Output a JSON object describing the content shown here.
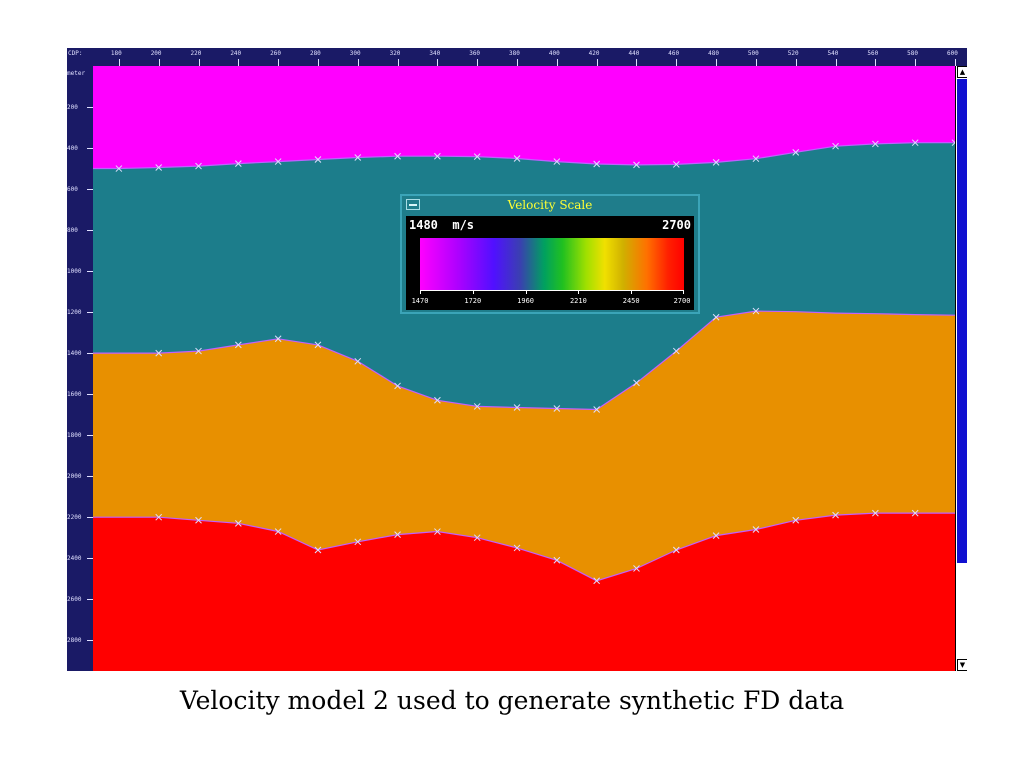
{
  "viewer": {
    "cdp_axis_label": "CDP:",
    "depth_axis_label": "meter",
    "cdp_ticks": [
      "180",
      "200",
      "220",
      "240",
      "260",
      "280",
      "300",
      "320",
      "340",
      "360",
      "380",
      "400",
      "420",
      "440",
      "460",
      "480",
      "500",
      "520",
      "540",
      "560",
      "580",
      "600"
    ],
    "depth_ticks": [
      "200",
      "400",
      "600",
      "800",
      "1000",
      "1200",
      "1400",
      "1600",
      "1800",
      "2000",
      "2200",
      "2400",
      "2600",
      "2800"
    ],
    "cdp_range": [
      167,
      600
    ],
    "depth_range": [
      0,
      2950
    ],
    "scrollbar": {
      "up_icon": "▲",
      "down_icon": "▼"
    }
  },
  "model": {
    "layer_colors": [
      "#ff00ff",
      "#1c7d8b",
      "#e89000",
      "#ff0000"
    ],
    "interfaces": [
      {
        "cdp": [
          167,
          180,
          200,
          220,
          240,
          260,
          280,
          300,
          320,
          340,
          360,
          380,
          400,
          420,
          440,
          460,
          480,
          500,
          520,
          540,
          560,
          580,
          600
        ],
        "depth": [
          500,
          500,
          495,
          488,
          476,
          466,
          456,
          446,
          440,
          440,
          442,
          451,
          466,
          478,
          482,
          480,
          470,
          452,
          421,
          391,
          380,
          374,
          374
        ],
        "markers_cdp": [
          180,
          200,
          220,
          240,
          260,
          280,
          300,
          320,
          340,
          360,
          380,
          400,
          420,
          440,
          460,
          480,
          500,
          520,
          540,
          560,
          580,
          600
        ],
        "markers_depth": [
          500,
          495,
          488,
          476,
          466,
          456,
          446,
          440,
          440,
          442,
          451,
          466,
          478,
          482,
          480,
          470,
          452,
          421,
          391,
          380,
          374,
          374
        ]
      },
      {
        "cdp": [
          167,
          200,
          220,
          240,
          260,
          280,
          300,
          320,
          340,
          360,
          380,
          400,
          420,
          440,
          460,
          480,
          500,
          520,
          540,
          560,
          580,
          600
        ],
        "depth": [
          1400,
          1400,
          1390,
          1360,
          1330,
          1360,
          1440,
          1560,
          1630,
          1660,
          1665,
          1670,
          1675,
          1545,
          1390,
          1225,
          1195,
          1198,
          1205,
          1208,
          1212,
          1215
        ],
        "markers_cdp": [
          200,
          220,
          240,
          260,
          280,
          300,
          320,
          340,
          360,
          380,
          400,
          420,
          440,
          460,
          480,
          500
        ],
        "markers_depth": [
          1400,
          1390,
          1360,
          1330,
          1360,
          1440,
          1560,
          1630,
          1660,
          1665,
          1670,
          1675,
          1545,
          1390,
          1225,
          1195
        ]
      },
      {
        "cdp": [
          167,
          200,
          220,
          240,
          260,
          280,
          300,
          320,
          340,
          360,
          380,
          400,
          420,
          440,
          460,
          480,
          500,
          520,
          540,
          560,
          580,
          600
        ],
        "depth": [
          2200,
          2200,
          2215,
          2230,
          2270,
          2360,
          2320,
          2285,
          2270,
          2300,
          2350,
          2410,
          2510,
          2450,
          2360,
          2290,
          2260,
          2215,
          2190,
          2180,
          2180,
          2180
        ],
        "markers_cdp": [
          200,
          220,
          240,
          260,
          280,
          300,
          320,
          340,
          360,
          380,
          400,
          420,
          440,
          460,
          480,
          500,
          520,
          540,
          560,
          580
        ],
        "markers_depth": [
          2200,
          2215,
          2230,
          2270,
          2360,
          2320,
          2285,
          2270,
          2300,
          2350,
          2410,
          2510,
          2450,
          2360,
          2290,
          2260,
          2215,
          2190,
          2180,
          2180
        ]
      }
    ]
  },
  "velocity_scale": {
    "title": "Velocity Scale",
    "current_value": "1480",
    "unit": "m/s",
    "max_value": "2700",
    "tick_labels": [
      "1470",
      "1720",
      "1960",
      "2210",
      "2450",
      "2700"
    ]
  },
  "caption": "Velocity model 2 used to generate synthetic FD data"
}
